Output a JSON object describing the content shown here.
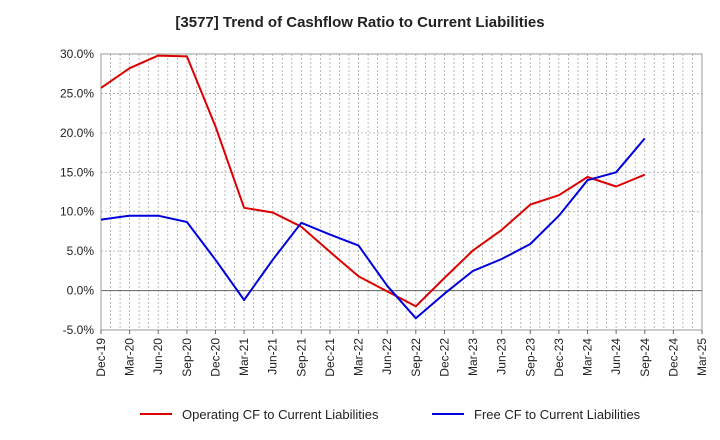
{
  "chart_data": {
    "type": "line",
    "title": "[3577]  Trend of Cashflow Ratio to Current Liabilities",
    "xlabel": "",
    "ylabel": "",
    "categories": [
      "Dec-19",
      "Mar-20",
      "Jun-20",
      "Sep-20",
      "Dec-20",
      "Mar-21",
      "Jun-21",
      "Sep-21",
      "Dec-21",
      "Mar-22",
      "Jun-22",
      "Sep-22",
      "Dec-22",
      "Mar-23",
      "Jun-23",
      "Sep-23",
      "Dec-23",
      "Mar-24",
      "Jun-24",
      "Sep-24",
      "Dec-24",
      "Mar-25"
    ],
    "y_ticks": [
      "30.0%",
      "25.0%",
      "20.0%",
      "15.0%",
      "10.0%",
      "5.0%",
      "0.0%",
      "-5.0%"
    ],
    "ylim": [
      -5,
      30
    ],
    "grid": true,
    "legend_position": "bottom",
    "series": [
      {
        "name": "Operating CF to Current Liabilities",
        "color": "#dd0000",
        "values": [
          25.7,
          28.2,
          29.8,
          29.7,
          20.8,
          10.5,
          9.9,
          8.1,
          4.9,
          1.8,
          -0.1,
          -2.0,
          1.6,
          5.1,
          7.7,
          10.9,
          12.1,
          14.4,
          13.2,
          14.7,
          null,
          null
        ]
      },
      {
        "name": "Free CF to Current Liabilities",
        "color": "#0000dd",
        "values": [
          9.0,
          9.5,
          9.5,
          8.7,
          3.9,
          -1.2,
          3.9,
          8.6,
          7.1,
          5.7,
          0.6,
          -3.5,
          -0.4,
          2.5,
          4.0,
          5.9,
          9.5,
          14.0,
          15.0,
          19.3,
          null,
          null
        ]
      }
    ]
  }
}
